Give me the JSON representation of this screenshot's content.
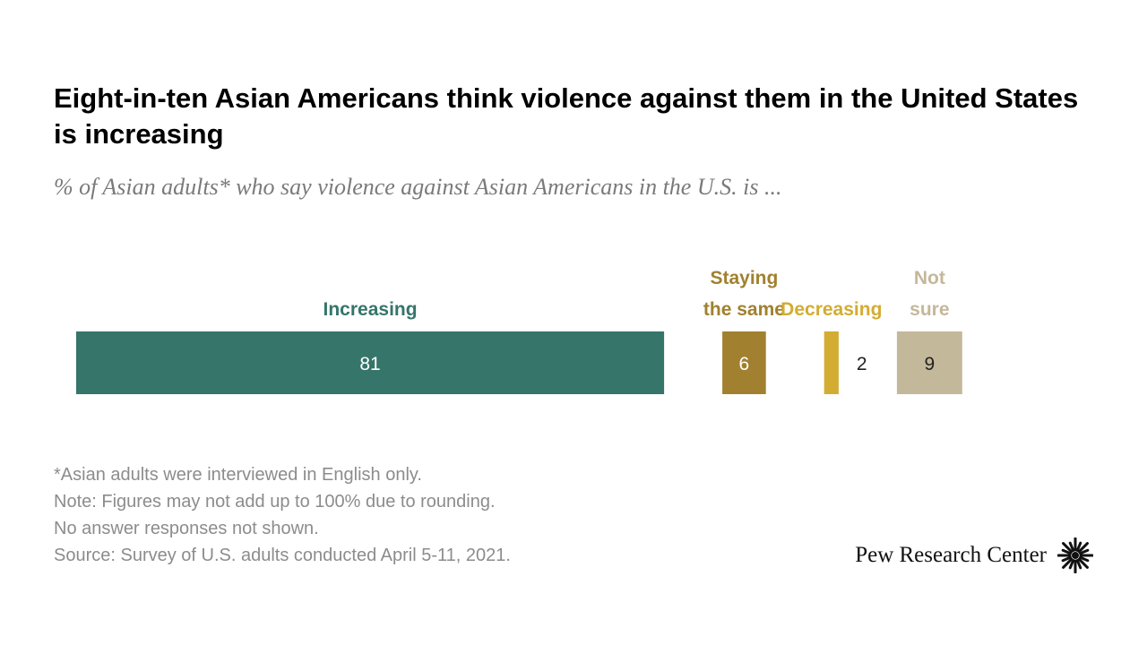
{
  "title": "Eight-in-ten Asian Americans think violence against them in the United States is increasing",
  "subtitle": "% of Asian adults* who say violence against Asian Americans in the U.S. is ...",
  "chart_data": {
    "type": "bar",
    "orientation": "horizontal-stacked-with-gaps",
    "categories": [
      "Increasing",
      "Staying the same",
      "Decreasing",
      "Not sure"
    ],
    "category_label_lines": [
      [
        "Increasing"
      ],
      [
        "Staying",
        "the same"
      ],
      [
        "Decreasing"
      ],
      [
        "Not",
        "sure"
      ]
    ],
    "values": [
      81,
      6,
      2,
      9
    ],
    "colors": [
      "#35756a",
      "#a1812f",
      "#d3ac32",
      "#c4b89a"
    ],
    "label_colors": [
      "#35756a",
      "#a1812f",
      "#d3ac32",
      "#c4b89a"
    ],
    "value_label_colors": [
      "#ffffff",
      "#ffffff",
      "#222222",
      "#222222"
    ],
    "title": "",
    "xlabel": "",
    "ylabel": "",
    "grid": false,
    "legend": "none"
  },
  "notes": [
    "*Asian adults were interviewed in English only.",
    "Note: Figures may not add up to 100% due to rounding.",
    "No answer responses not shown.",
    "Source: Survey of U.S. adults conducted April 5-11, 2021."
  ],
  "branding": {
    "name": "Pew Research Center",
    "icon": "pew-sunburst-icon"
  }
}
